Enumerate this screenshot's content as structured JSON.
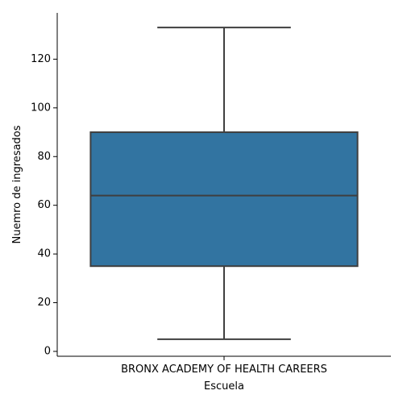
{
  "chart_data": {
    "type": "box",
    "title": "",
    "xlabel": "Escuela",
    "ylabel": "Nuemro de ingresados",
    "categories": [
      "BRONX ACADEMY OF HEALTH CAREERS"
    ],
    "boxes": [
      {
        "category": "BRONX ACADEMY OF HEALTH CAREERS",
        "whisker_low": 5,
        "q1": 35,
        "median": 64,
        "q3": 90,
        "whisker_high": 133
      }
    ],
    "ylim": [
      -2,
      139
    ],
    "yticks": [
      0,
      20,
      40,
      60,
      80,
      100,
      120
    ],
    "grid": false,
    "colors": {
      "box_fill": "#3274a1",
      "box_edge": "#3f3f3f",
      "axis": "#000000"
    }
  }
}
